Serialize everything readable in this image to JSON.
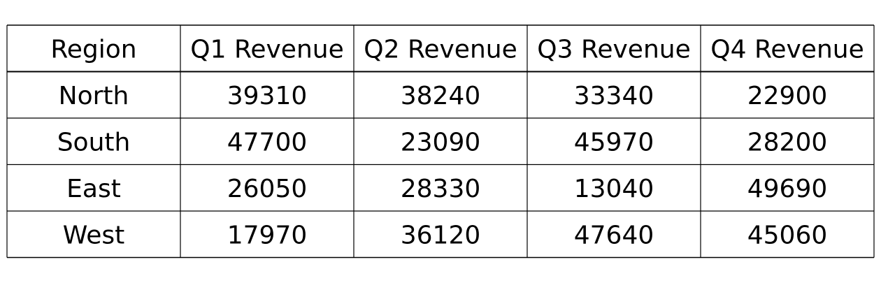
{
  "chart_data": {
    "type": "table",
    "columns": [
      "Region",
      "Q1 Revenue",
      "Q2 Revenue",
      "Q3 Revenue",
      "Q4 Revenue"
    ],
    "rows": [
      [
        "North",
        "39310",
        "38240",
        "33340",
        "22900"
      ],
      [
        "South",
        "47700",
        "23090",
        "45970",
        "28200"
      ],
      [
        "East",
        "26050",
        "28330",
        "13040",
        "49690"
      ],
      [
        "West",
        "17970",
        "36120",
        "47640",
        "45060"
      ]
    ]
  }
}
